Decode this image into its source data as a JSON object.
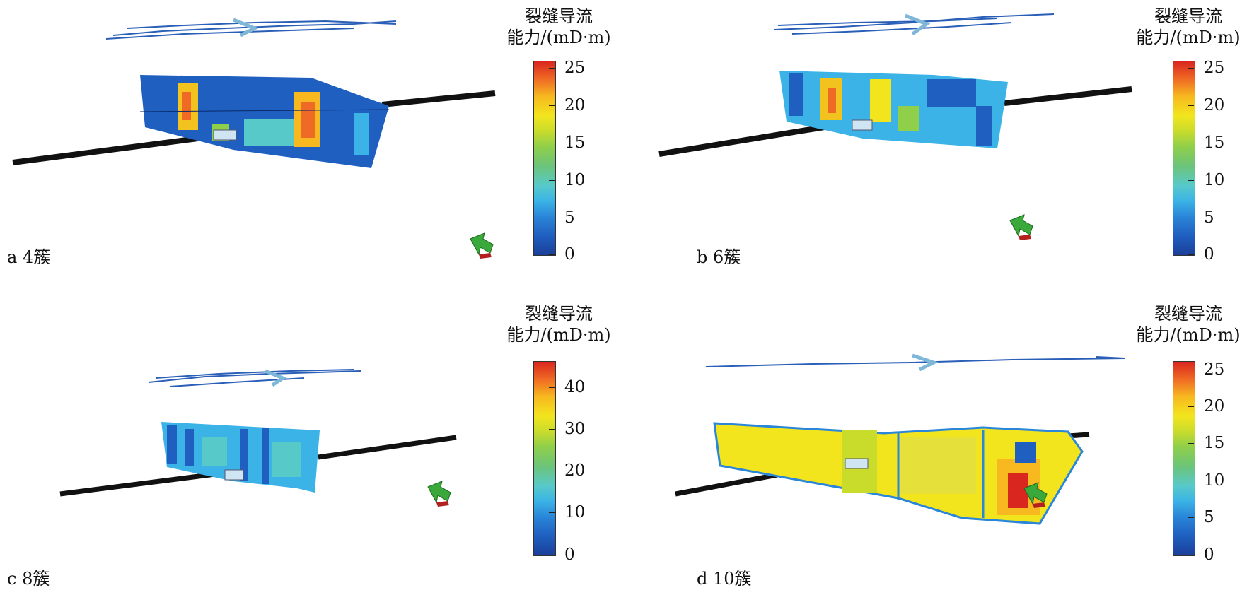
{
  "colorbar_title": [
    "裂缝导流",
    "能力/(mD·m)"
  ],
  "panels": [
    {
      "label": "a 4簇",
      "colorbar_ticks": [
        "25",
        "20",
        "15",
        "10",
        "5",
        "0"
      ]
    },
    {
      "label": "b 6簇",
      "colorbar_ticks": [
        "25",
        "20",
        "15",
        "10",
        "5",
        "0"
      ]
    },
    {
      "label": "c 8簇",
      "colorbar_ticks": [
        "40",
        "30",
        "20",
        "10",
        "0"
      ]
    },
    {
      "label": "d 10簇",
      "colorbar_ticks": [
        "25",
        "20",
        "15",
        "10",
        "5",
        "0"
      ]
    }
  ],
  "colors": {
    "wellbore": "#111111",
    "fracture_low": "#1f5fbf",
    "fracture_mid": "#3bb3e6",
    "fracture_high": "#f2e51e",
    "fracture_peak": "#d9261f",
    "fracture_trace": "#2a5fb8",
    "orientation_arrow": "#3aa83a"
  },
  "icons": [
    "orientation-arrow-icon"
  ]
}
